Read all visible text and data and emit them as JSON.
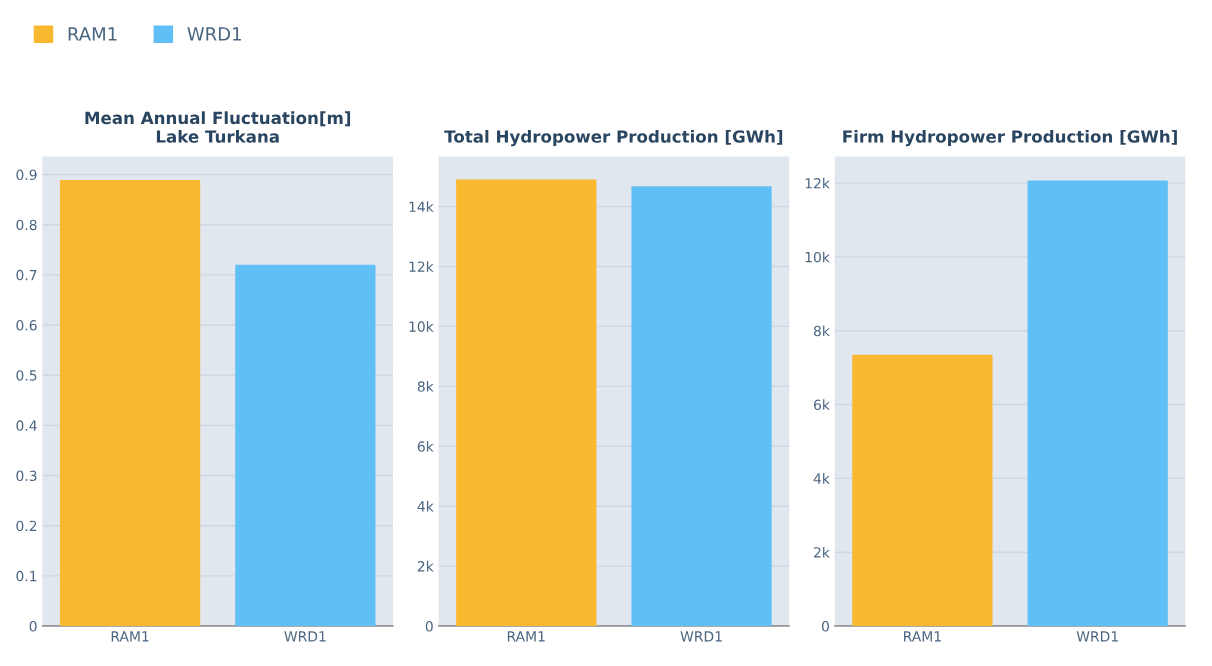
{
  "chart_data": [
    {
      "type": "bar",
      "title": "Mean Annual Fluctuation[m]\nLake Turkana",
      "categories": [
        "RAM1",
        "WRD1"
      ],
      "legend": "top left",
      "grid": "y",
      "series": [
        {
          "name": "RAM1",
          "color": "#f8b830",
          "values": [
            0.889,
            null
          ]
        },
        {
          "name": "WRD1",
          "color": "#60bff5",
          "values": [
            null,
            0.72
          ]
        }
      ],
      "ylim": [
        0,
        0.936
      ],
      "yticks": [
        0,
        0.1,
        0.2,
        0.3,
        0.4,
        0.5,
        0.6,
        0.7,
        0.8,
        0.9
      ]
    },
    {
      "type": "bar",
      "title": "Total Hydropower Production [GWh]",
      "categories": [
        "RAM1",
        "WRD1"
      ],
      "grid": "y",
      "values": [
        14900,
        14680
      ],
      "colors": [
        "#f8b830",
        "#60bff5"
      ],
      "ylim": [
        0,
        15670
      ],
      "yticks": [
        0,
        {
          "value": 2000,
          "label": "2k"
        },
        {
          "value": 4000,
          "label": "4k"
        },
        {
          "value": 6000,
          "label": "6k"
        },
        {
          "value": 8000,
          "label": "8k"
        },
        {
          "value": 10000,
          "label": "10k"
        },
        {
          "value": 12000,
          "label": "12k"
        },
        {
          "value": 14000,
          "label": "14k"
        }
      ]
    },
    {
      "type": "bar",
      "title": "Firm Hydropower Production [GWh]",
      "categories": [
        "RAM1",
        "WRD1"
      ],
      "grid": "y",
      "values": [
        7350,
        12070
      ],
      "colors": [
        "#f8b830",
        "#60bff5"
      ],
      "ylim": [
        0,
        12720
      ],
      "yticks": [
        0,
        {
          "value": 2000,
          "label": "2k"
        },
        {
          "value": 4000,
          "label": "4k"
        },
        {
          "value": 6000,
          "label": "6k"
        },
        {
          "value": 8000,
          "label": "8k"
        },
        {
          "value": 10000,
          "label": "10k"
        },
        {
          "value": 12000,
          "label": "12k"
        }
      ]
    }
  ]
}
